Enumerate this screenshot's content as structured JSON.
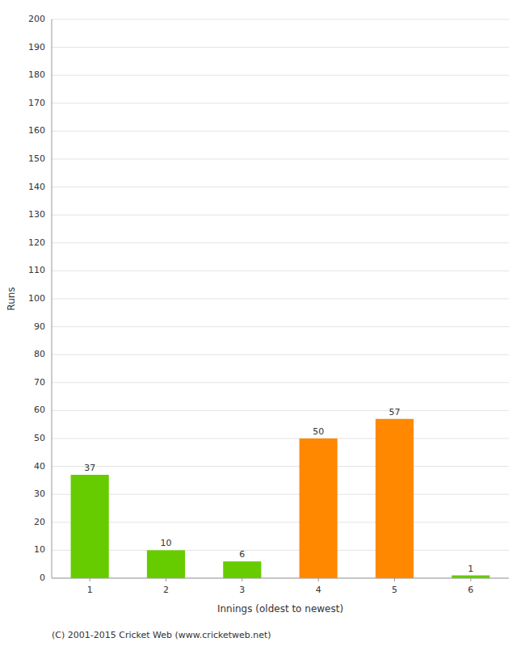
{
  "chart_data": {
    "type": "bar",
    "categories": [
      "1",
      "2",
      "3",
      "4",
      "5",
      "6"
    ],
    "values": [
      37,
      10,
      6,
      50,
      57,
      1
    ],
    "colors": [
      "#66cc00",
      "#66cc00",
      "#66cc00",
      "#ff8800",
      "#ff8800",
      "#66cc00"
    ],
    "xlabel": "Innings (oldest to newest)",
    "ylabel": "Runs",
    "ylim": [
      0,
      200
    ],
    "yticks": [
      0,
      10,
      20,
      30,
      40,
      50,
      60,
      70,
      80,
      90,
      100,
      110,
      120,
      130,
      140,
      150,
      160,
      170,
      180,
      190,
      200
    ],
    "grid": true,
    "data_labels": true,
    "annotations": [
      "(C) 2001-2015 Cricket Web (www.cricketweb.net)"
    ]
  }
}
